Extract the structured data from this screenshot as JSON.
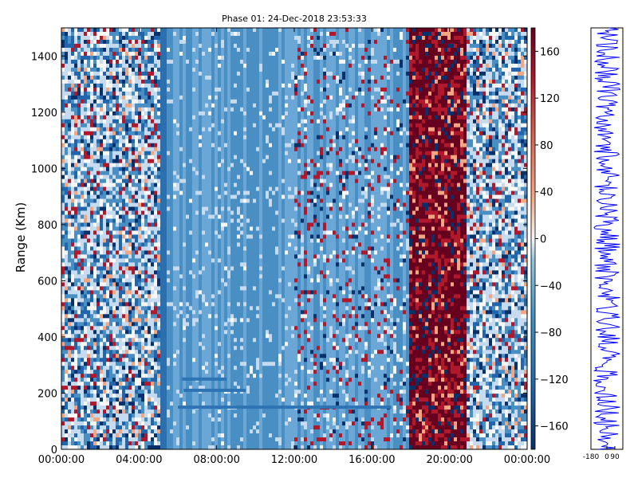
{
  "chart_data": [
    {
      "type": "heatmap",
      "title": "Phase 01: 24-Dec-2018 23:53:33",
      "xlabel": "",
      "ylabel": "Range (Km)",
      "x_ticks": [
        "00:00:00",
        "04:00:00",
        "08:00:00",
        "12:00:00",
        "16:00:00",
        "20:00:00",
        "00:00:00"
      ],
      "x_range_hours": [
        0,
        24
      ],
      "y_ticks": [
        0,
        200,
        400,
        600,
        800,
        1000,
        1200,
        1400
      ],
      "ylim": [
        0,
        1500
      ],
      "colorbar": {
        "ticks": [
          160,
          120,
          80,
          40,
          0,
          -40,
          -80,
          -120,
          -160
        ],
        "range": [
          -180,
          180
        ],
        "colormap": "RdBu_r"
      },
      "colors": {
        "deep_blue": "#08306b",
        "mid_blue": "#4a8fc3",
        "light_blue": "#c6dbef",
        "white": "#f7f7f7",
        "light_red": "#f4a582",
        "dark_red": "#67001f"
      },
      "features": [
        {
          "description": "noisy phase bands",
          "x_hours": [
            0,
            5.3
          ]
        },
        {
          "description": "quiet blue region with traces near 150-350 km",
          "x_hours": [
            5.3,
            18
          ]
        },
        {
          "description": "strong red band",
          "x_hours": [
            18,
            20.8
          ]
        },
        {
          "description": "noisy phase bands",
          "x_hours": [
            20.8,
            24
          ]
        }
      ]
    },
    {
      "type": "line",
      "title": "",
      "x_ticks": [
        "-180",
        "0",
        "90"
      ],
      "xlim": [
        -180,
        180
      ],
      "ylim": [
        0,
        1500
      ],
      "line_color": "#0000ff"
    }
  ]
}
